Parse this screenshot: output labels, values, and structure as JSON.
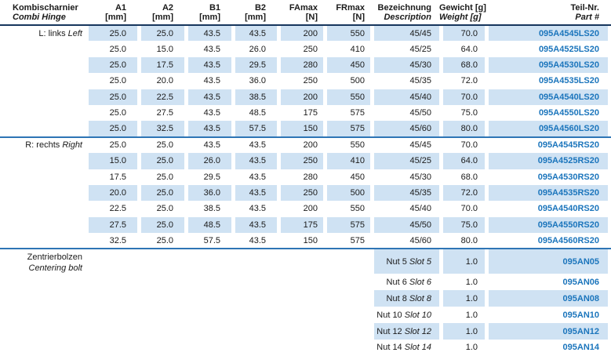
{
  "table": {
    "header": {
      "col0": {
        "line1": "Kombischarnier",
        "line2": "Combi Hinge"
      },
      "columns": [
        {
          "line1": "A1",
          "line2": "[mm]"
        },
        {
          "line1": "A2",
          "line2": "[mm]"
        },
        {
          "line1": "B1",
          "line2": "[mm]"
        },
        {
          "line1": "B2",
          "line2": "[mm]"
        },
        {
          "line1": "FAmax",
          "line2": "[N]"
        },
        {
          "line1": "FRmax",
          "line2": "[N]"
        },
        {
          "line1": "Bezeichnung",
          "line2": "Description"
        },
        {
          "line1": "Gewicht [g]",
          "line2": "Weight [g]"
        },
        {
          "line1": "Teil-Nr.",
          "line2": "Part #"
        }
      ]
    },
    "colors": {
      "shade": "#cfe2f3",
      "part_number": "#1b75bc",
      "header_rule": "#17365d",
      "section_rule": "#2e75b5"
    },
    "sections": [
      {
        "label_de": "L: links",
        "label_en": "Left",
        "stacked_label": false,
        "rows": [
          {
            "a1": "25.0",
            "a2": "25.0",
            "b1": "43.5",
            "b2": "43.5",
            "famax": "200",
            "frmax": "550",
            "bez_de": "45/45",
            "bez_en": "",
            "weight": "70.0",
            "part": "095A4545LS20",
            "shaded": true
          },
          {
            "a1": "25.0",
            "a2": "15.0",
            "b1": "43.5",
            "b2": "26.0",
            "famax": "250",
            "frmax": "410",
            "bez_de": "45/25",
            "bez_en": "",
            "weight": "64.0",
            "part": "095A4525LS20",
            "shaded": false
          },
          {
            "a1": "25.0",
            "a2": "17.5",
            "b1": "43.5",
            "b2": "29.5",
            "famax": "280",
            "frmax": "450",
            "bez_de": "45/30",
            "bez_en": "",
            "weight": "68.0",
            "part": "095A4530LS20",
            "shaded": true
          },
          {
            "a1": "25.0",
            "a2": "20.0",
            "b1": "43.5",
            "b2": "36.0",
            "famax": "250",
            "frmax": "500",
            "bez_de": "45/35",
            "bez_en": "",
            "weight": "72.0",
            "part": "095A4535LS20",
            "shaded": false
          },
          {
            "a1": "25.0",
            "a2": "22.5",
            "b1": "43.5",
            "b2": "38.5",
            "famax": "200",
            "frmax": "550",
            "bez_de": "45/40",
            "bez_en": "",
            "weight": "70.0",
            "part": "095A4540LS20",
            "shaded": true
          },
          {
            "a1": "25.0",
            "a2": "27.5",
            "b1": "43.5",
            "b2": "48.5",
            "famax": "175",
            "frmax": "575",
            "bez_de": "45/50",
            "bez_en": "",
            "weight": "75.0",
            "part": "095A4550LS20",
            "shaded": false
          },
          {
            "a1": "25.0",
            "a2": "32.5",
            "b1": "43.5",
            "b2": "57.5",
            "famax": "150",
            "frmax": "575",
            "bez_de": "45/60",
            "bez_en": "",
            "weight": "80.0",
            "part": "095A4560LS20",
            "shaded": true
          }
        ]
      },
      {
        "label_de": "R: rechts",
        "label_en": "Right",
        "stacked_label": false,
        "rows": [
          {
            "a1": "25.0",
            "a2": "25.0",
            "b1": "43.5",
            "b2": "43.5",
            "famax": "200",
            "frmax": "550",
            "bez_de": "45/45",
            "bez_en": "",
            "weight": "70.0",
            "part": "095A4545RS20",
            "shaded": false
          },
          {
            "a1": "15.0",
            "a2": "25.0",
            "b1": "26.0",
            "b2": "43.5",
            "famax": "250",
            "frmax": "410",
            "bez_de": "45/25",
            "bez_en": "",
            "weight": "64.0",
            "part": "095A4525RS20",
            "shaded": true
          },
          {
            "a1": "17.5",
            "a2": "25.0",
            "b1": "29.5",
            "b2": "43.5",
            "famax": "280",
            "frmax": "450",
            "bez_de": "45/30",
            "bez_en": "",
            "weight": "68.0",
            "part": "095A4530RS20",
            "shaded": false
          },
          {
            "a1": "20.0",
            "a2": "25.0",
            "b1": "36.0",
            "b2": "43.5",
            "famax": "250",
            "frmax": "500",
            "bez_de": "45/35",
            "bez_en": "",
            "weight": "72.0",
            "part": "095A4535RS20",
            "shaded": true
          },
          {
            "a1": "22.5",
            "a2": "25.0",
            "b1": "38.5",
            "b2": "43.5",
            "famax": "200",
            "frmax": "550",
            "bez_de": "45/40",
            "bez_en": "",
            "weight": "70.0",
            "part": "095A4540RS20",
            "shaded": false
          },
          {
            "a1": "27.5",
            "a2": "25.0",
            "b1": "48.5",
            "b2": "43.5",
            "famax": "175",
            "frmax": "575",
            "bez_de": "45/50",
            "bez_en": "",
            "weight": "75.0",
            "part": "095A4550RS20",
            "shaded": true
          },
          {
            "a1": "32.5",
            "a2": "25.0",
            "b1": "57.5",
            "b2": "43.5",
            "famax": "150",
            "frmax": "575",
            "bez_de": "45/60",
            "bez_en": "",
            "weight": "80.0",
            "part": "095A4560RS20",
            "shaded": false
          }
        ]
      },
      {
        "label_de": "Zentrierbolzen",
        "label_en": "Centering bolt",
        "stacked_label": true,
        "rows": [
          {
            "a1": "",
            "a2": "",
            "b1": "",
            "b2": "",
            "famax": "",
            "frmax": "",
            "bez_de": "Nut 5",
            "bez_en": "Slot 5",
            "weight": "1.0",
            "part": "095AN05",
            "shaded": true
          },
          {
            "a1": "",
            "a2": "",
            "b1": "",
            "b2": "",
            "famax": "",
            "frmax": "",
            "bez_de": "Nut 6",
            "bez_en": "Slot 6",
            "weight": "1.0",
            "part": "095AN06",
            "shaded": false
          },
          {
            "a1": "",
            "a2": "",
            "b1": "",
            "b2": "",
            "famax": "",
            "frmax": "",
            "bez_de": "Nut 8",
            "bez_en": "Slot 8",
            "weight": "1.0",
            "part": "095AN08",
            "shaded": true
          },
          {
            "a1": "",
            "a2": "",
            "b1": "",
            "b2": "",
            "famax": "",
            "frmax": "",
            "bez_de": "Nut 10",
            "bez_en": "Slot 10",
            "weight": "1.0",
            "part": "095AN10",
            "shaded": false
          },
          {
            "a1": "",
            "a2": "",
            "b1": "",
            "b2": "",
            "famax": "",
            "frmax": "",
            "bez_de": "Nut 12",
            "bez_en": "Slot 12",
            "weight": "1.0",
            "part": "095AN12",
            "shaded": true
          },
          {
            "a1": "",
            "a2": "",
            "b1": "",
            "b2": "",
            "famax": "",
            "frmax": "",
            "bez_de": "Nut 14",
            "bez_en": "Slot 14",
            "weight": "1.0",
            "part": "095AN14",
            "shaded": false
          }
        ]
      }
    ]
  }
}
